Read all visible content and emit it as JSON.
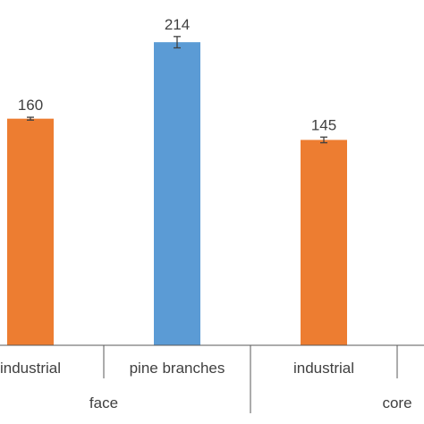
{
  "chart_data": {
    "type": "bar",
    "categories": [
      "industrial",
      "pine branches",
      "industrial"
    ],
    "groups": [
      {
        "label": "face",
        "categories": [
          "industrial",
          "pine branches"
        ]
      },
      {
        "label": "core",
        "categories": [
          "industrial"
        ]
      }
    ],
    "values": [
      160,
      214,
      145
    ],
    "error": [
      1,
      4,
      2
    ],
    "data_labels": [
      "160",
      "214",
      "145"
    ],
    "ylim": [
      0,
      240
    ],
    "grid": false,
    "legend": "none"
  },
  "colors": {
    "orange": "#ED7D31",
    "blue": "#5B9BD5",
    "bar_colors": [
      "#ED7D31",
      "#5B9BD5",
      "#ED7D31"
    ],
    "axis": "#595959",
    "text": "#404040"
  }
}
